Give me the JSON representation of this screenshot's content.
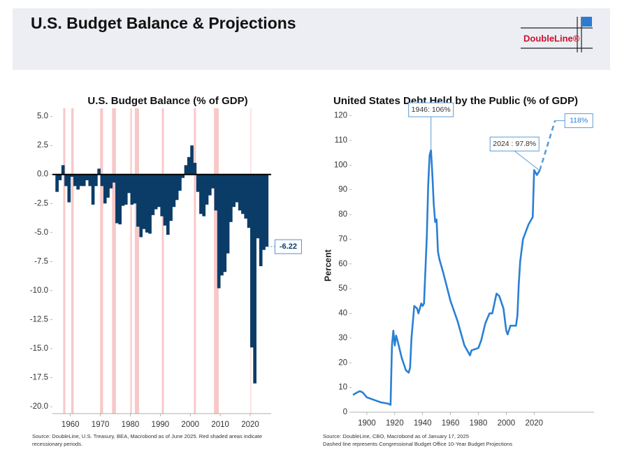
{
  "header": {
    "title": "U.S. Budget Balance & Projections",
    "logo": "DoubleLine®"
  },
  "chart_data": [
    {
      "type": "area",
      "title": "U.S. Budget Balance (% of GDP)",
      "color": "#0b3c68",
      "zero_line": true,
      "callout_last": true,
      "recession_color": "#f8c8c8",
      "recessions": [
        [
          1957.6,
          1958.3
        ],
        [
          1960.3,
          1961.1
        ],
        [
          1969.9,
          1970.9
        ],
        [
          1973.9,
          1975.2
        ],
        [
          1980.0,
          1980.5
        ],
        [
          1981.5,
          1982.9
        ],
        [
          1990.5,
          1991.2
        ],
        [
          2001.2,
          2001.9
        ],
        [
          2007.9,
          2009.5
        ],
        [
          2020.1,
          2020.3
        ]
      ],
      "x": [
        1955,
        1956,
        1957,
        1958,
        1959,
        1960,
        1961,
        1962,
        1963,
        1964,
        1965,
        1966,
        1967,
        1968,
        1969,
        1970,
        1971,
        1972,
        1973,
        1974,
        1975,
        1976,
        1977,
        1978,
        1979,
        1980,
        1981,
        1982,
        1983,
        1984,
        1985,
        1986,
        1987,
        1988,
        1989,
        1990,
        1991,
        1992,
        1993,
        1994,
        1995,
        1996,
        1997,
        1998,
        1999,
        2000,
        2001,
        2002,
        2003,
        2004,
        2005,
        2006,
        2007,
        2008,
        2009,
        2010,
        2011,
        2012,
        2013,
        2014,
        2015,
        2016,
        2017,
        2018,
        2019,
        2020,
        2021,
        2022,
        2023,
        2024,
        2025
      ],
      "values": [
        -1.5,
        -0.5,
        0.8,
        -1.0,
        -2.4,
        -0.2,
        -1.0,
        -1.3,
        -1.0,
        -1.0,
        -0.5,
        -1.0,
        -2.6,
        -1.0,
        0.5,
        -1.0,
        -2.5,
        -2.0,
        -1.2,
        -0.7,
        -4.2,
        -4.3,
        -2.7,
        -2.6,
        -1.6,
        -2.6,
        -2.5,
        -4.5,
        -5.4,
        -4.7,
        -5.0,
        -5.1,
        -3.5,
        -3.0,
        -2.8,
        -3.6,
        -4.4,
        -5.2,
        -4.0,
        -2.8,
        -2.2,
        -1.4,
        -0.3,
        0.8,
        1.5,
        2.5,
        1.0,
        -1.5,
        -3.4,
        -3.6,
        -2.6,
        -1.8,
        -1.2,
        -3.1,
        -9.8,
        -8.7,
        -8.4,
        -6.8,
        -4.1,
        -2.8,
        -2.4,
        -3.1,
        -3.4,
        -3.8,
        -4.6,
        -14.9,
        -18.0,
        -5.5,
        -7.9,
        -6.5,
        -6.22
      ],
      "xlim": [
        1954,
        2027
      ],
      "ylim": [
        -20.6,
        5.7
      ],
      "xticks": [
        1960,
        1970,
        1980,
        1990,
        2000,
        2010,
        2020
      ],
      "yticks": [
        {
          "value": 5,
          "label": "5.0"
        },
        2.5,
        {
          "value": 0,
          "label": "0.0"
        },
        -2.5,
        {
          "value": -5,
          "label": "-5.0"
        },
        -7.5,
        {
          "value": -10,
          "label": "-10.0"
        },
        -12.5,
        {
          "value": -15,
          "label": "-15.0"
        },
        -17.5,
        {
          "value": -20,
          "label": "-20.0"
        }
      ],
      "source": "Source: DoubleLine, U.S. Treasury, BEA, Macrobond as of June 2025. Red shaded areas indicate",
      "source_2": "recessionary periods."
    },
    {
      "type": "line",
      "title": "United States Debt Held by the Public (% of GDP)",
      "y_label": "Percent",
      "xlim": [
        1889,
        2063
      ],
      "ylim": [
        0,
        123
      ],
      "xticks": [
        1900,
        1920,
        1940,
        1960,
        1980,
        2000,
        2020
      ],
      "yticks": [
        0,
        10,
        20,
        30,
        40,
        50,
        60,
        70,
        80,
        90,
        100,
        110,
        120
      ],
      "series": [
        {
          "color": "#2a7fd4",
          "x": [
            1890,
            1893,
            1895,
            1897,
            1900,
            1905,
            1910,
            1915,
            1917,
            1918,
            1919,
            1920,
            1921,
            1922,
            1925,
            1928,
            1930,
            1931,
            1932,
            1934,
            1936,
            1937,
            1939,
            1940,
            1941,
            1943,
            1944,
            1945,
            1946,
            1947,
            1948,
            1949,
            1950,
            1951,
            1952,
            1955,
            1960,
            1965,
            1970,
            1974,
            1975,
            1980,
            1982,
            1985,
            1988,
            1990,
            1993,
            1995,
            1998,
            2000,
            2001,
            2003,
            2005,
            2007,
            2008,
            2009,
            2010,
            2012,
            2014,
            2016,
            2019,
            2020,
            2021,
            2022,
            2023,
            2024
          ],
          "values": [
            7,
            8,
            8.5,
            8,
            6,
            5,
            4,
            3.5,
            3,
            27,
            33,
            27,
            31,
            29,
            22,
            17,
            16,
            18,
            30,
            43,
            42,
            40,
            44,
            43,
            44,
            71,
            92,
            104,
            106,
            96,
            84,
            77,
            78,
            65,
            62,
            56,
            45,
            37,
            27,
            23,
            25,
            26,
            29,
            36,
            40,
            40,
            48,
            47,
            42,
            33,
            31.5,
            35,
            35,
            35,
            39,
            52,
            61,
            70,
            73,
            76,
            79,
            98,
            97,
            96,
            97,
            97.8
          ]
        },
        {
          "color": "#5b9bd5",
          "dashed": true,
          "x": [
            2024,
            2035
          ],
          "values": [
            97.8,
            118
          ]
        }
      ],
      "annotations": [
        {
          "x": 1946,
          "y": 106,
          "label": "1946: 106%"
        },
        {
          "x": 2024,
          "y": 97.8,
          "label": "2024 : 97.8%"
        },
        {
          "x": 2035,
          "y": 118,
          "label": "118%"
        }
      ],
      "source": "Source: DoubleLine, CBO, Macrobond as of January 17, 2025",
      "source_2": "Dashed line represents Congressional Budget Office 10-Year Budget Projections"
    }
  ]
}
